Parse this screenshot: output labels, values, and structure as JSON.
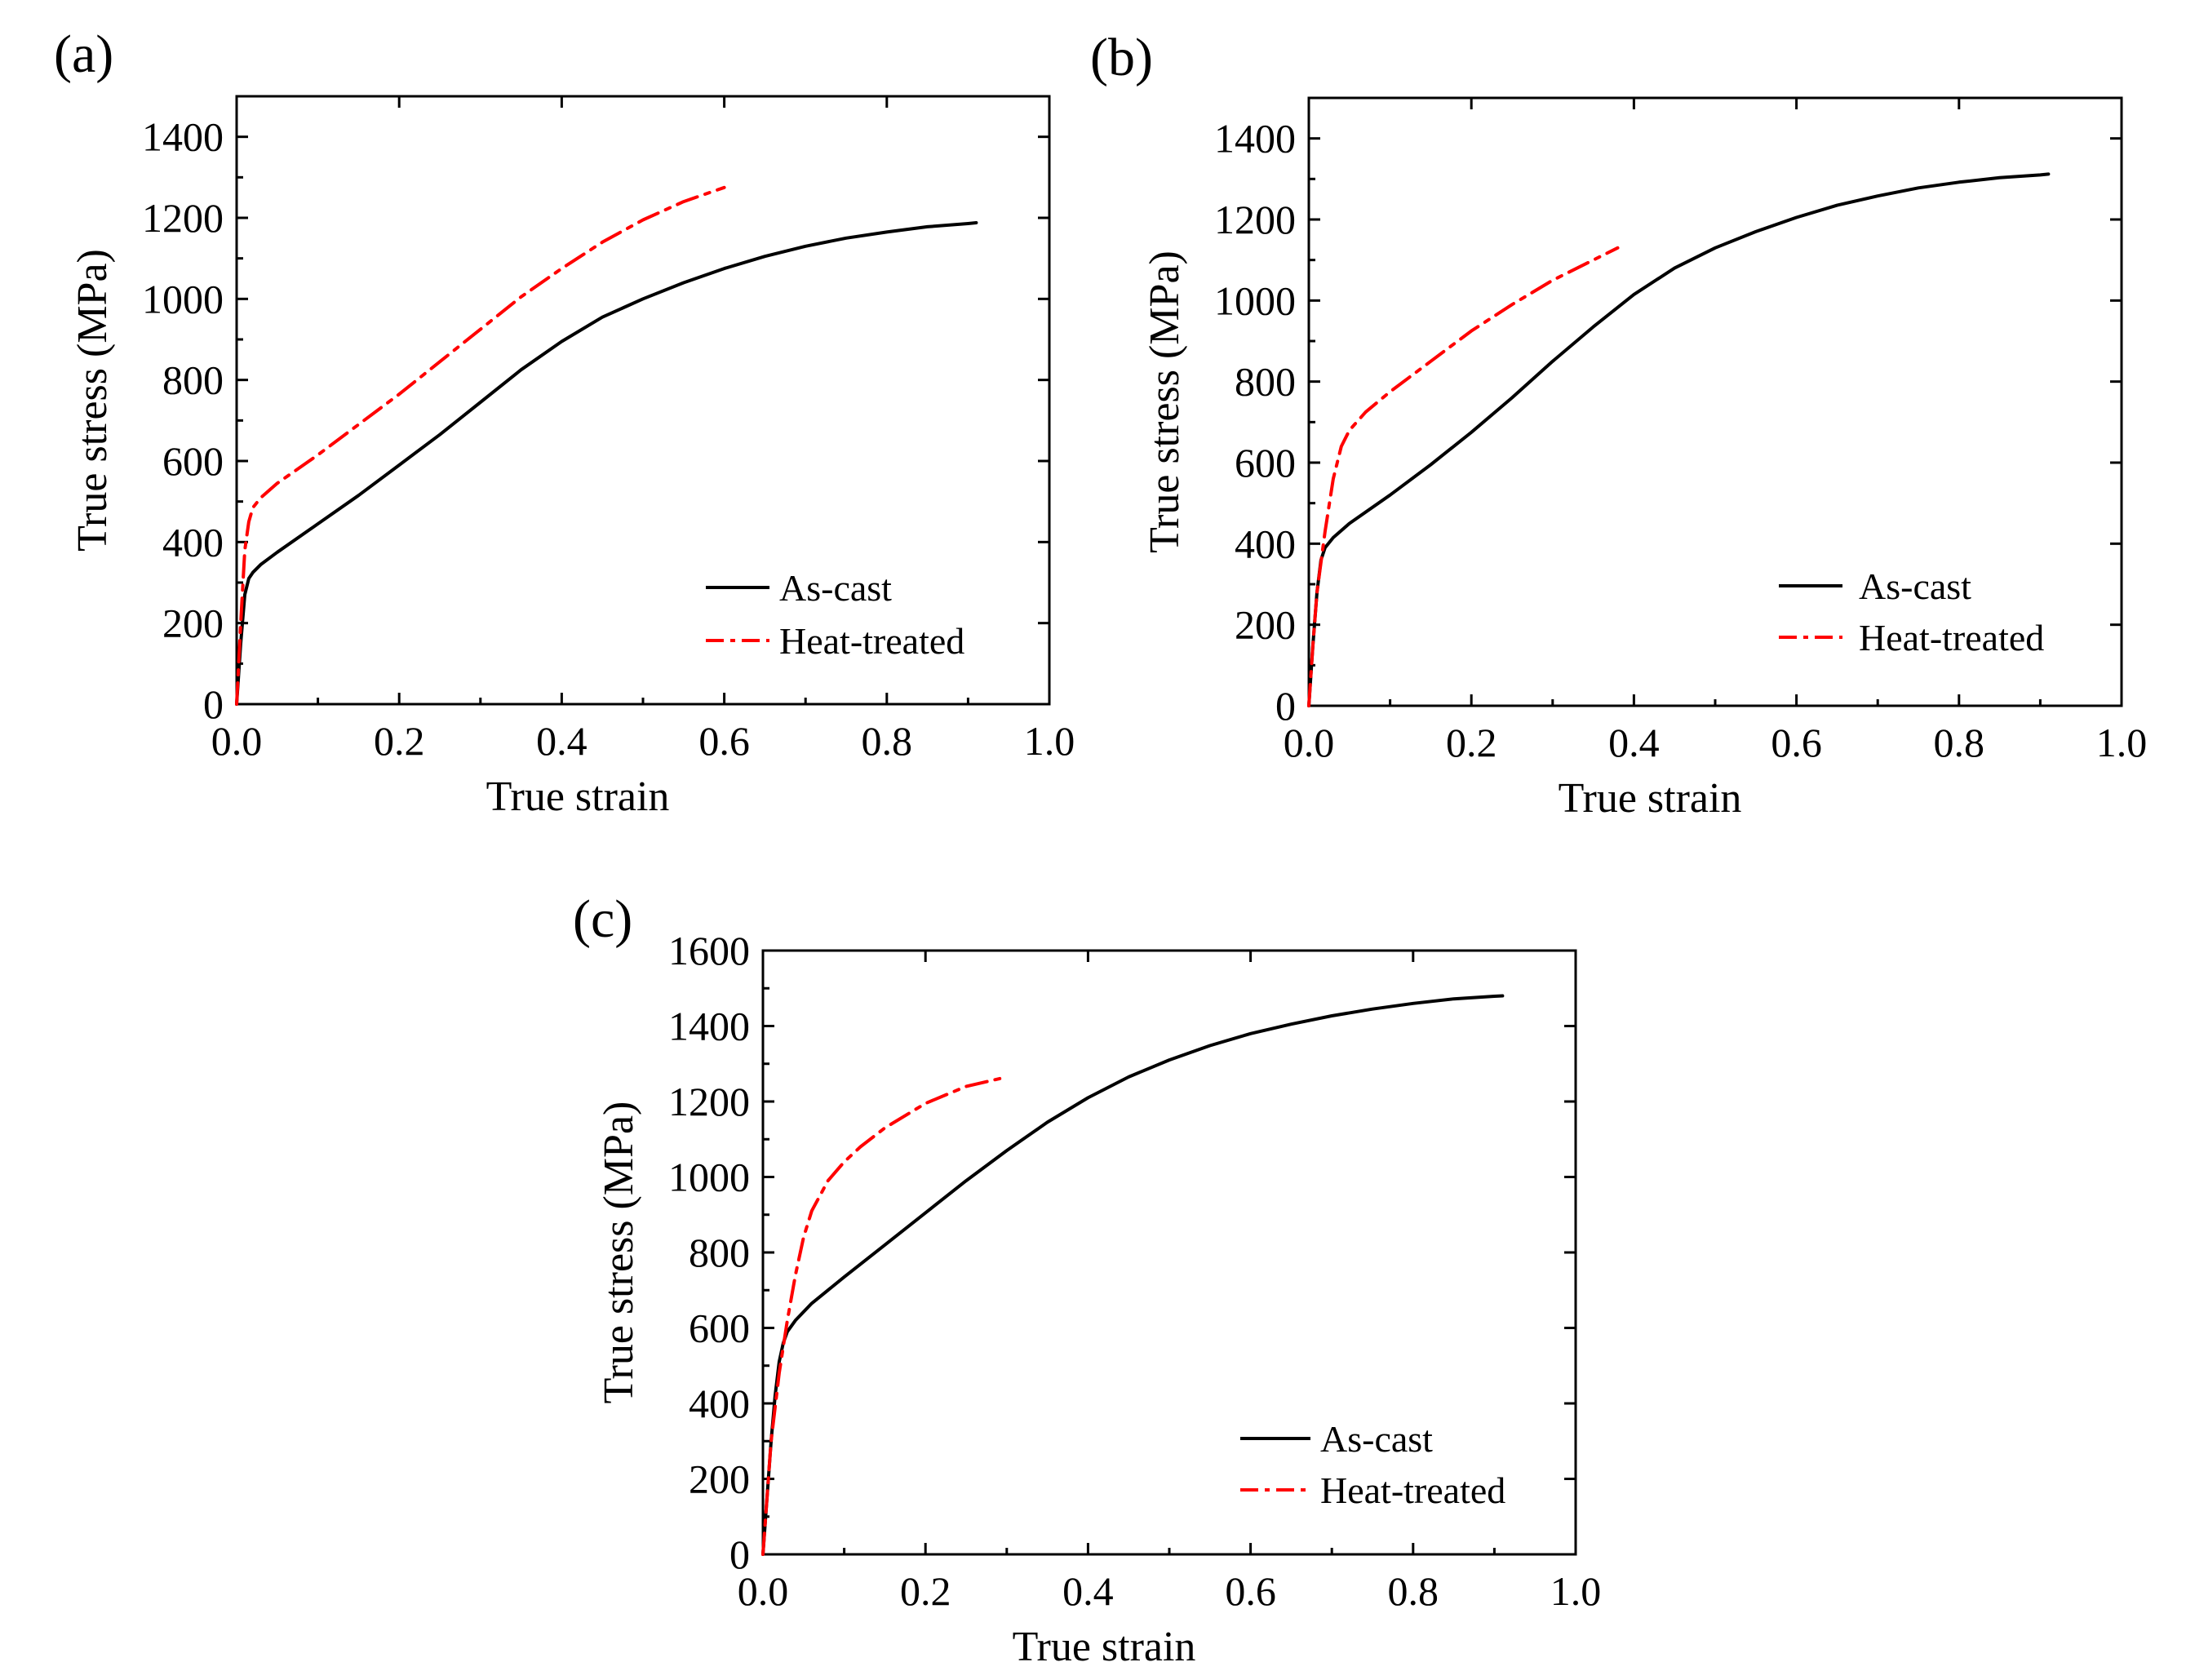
{
  "figure": {
    "description": "True stress vs true strain curves, three panels",
    "colors": {
      "as_cast": "#000000",
      "heat_treated": "#ff0000",
      "axis": "#000000"
    }
  },
  "chart_data": [
    {
      "panel": "(a)",
      "type": "line",
      "xlabel": "True strain",
      "ylabel": "True stress (MPa)",
      "xlim": [
        0.0,
        1.0
      ],
      "ylim": [
        0,
        1500
      ],
      "xticks": [
        0.0,
        0.2,
        0.4,
        0.6,
        0.8,
        1.0
      ],
      "xtick_labels": [
        "0.0",
        "0.2",
        "0.4",
        "0.6",
        "0.8",
        "1.0"
      ],
      "yticks": [
        0,
        200,
        400,
        600,
        800,
        1000,
        1200,
        1400
      ],
      "ytick_labels": [
        "0",
        "200",
        "400",
        "600",
        "800",
        "1000",
        "1200",
        "1400"
      ],
      "legend_position": "bottom-right",
      "series": [
        {
          "name": "As-cast",
          "style": "solid",
          "color": "#000000",
          "x": [
            0.0,
            0.005,
            0.01,
            0.015,
            0.02,
            0.03,
            0.05,
            0.1,
            0.15,
            0.2,
            0.25,
            0.3,
            0.35,
            0.4,
            0.45,
            0.5,
            0.55,
            0.6,
            0.65,
            0.7,
            0.75,
            0.8,
            0.85,
            0.9,
            0.91
          ],
          "y": [
            0,
            150,
            270,
            310,
            325,
            345,
            375,
            445,
            515,
            590,
            665,
            745,
            825,
            895,
            955,
            1000,
            1040,
            1075,
            1105,
            1130,
            1150,
            1165,
            1178,
            1186,
            1188
          ]
        },
        {
          "name": "Heat-treated",
          "style": "dashdot",
          "color": "#ff0000",
          "x": [
            0.0,
            0.005,
            0.01,
            0.015,
            0.02,
            0.03,
            0.05,
            0.1,
            0.15,
            0.2,
            0.25,
            0.3,
            0.35,
            0.4,
            0.45,
            0.5,
            0.55,
            0.6
          ],
          "y": [
            0,
            200,
            380,
            450,
            485,
            510,
            545,
            615,
            690,
            765,
            845,
            925,
            1005,
            1075,
            1140,
            1195,
            1240,
            1275
          ]
        }
      ]
    },
    {
      "panel": "(b)",
      "type": "line",
      "xlabel": "True strain",
      "ylabel": "True stress (MPa)",
      "xlim": [
        0.0,
        1.0
      ],
      "ylim": [
        0,
        1500
      ],
      "xticks": [
        0.0,
        0.2,
        0.4,
        0.6,
        0.8,
        1.0
      ],
      "xtick_labels": [
        "0.0",
        "0.2",
        "0.4",
        "0.6",
        "0.8",
        "1.0"
      ],
      "yticks": [
        0,
        200,
        400,
        600,
        800,
        1000,
        1200,
        1400
      ],
      "ytick_labels": [
        "0",
        "200",
        "400",
        "600",
        "800",
        "1000",
        "1200",
        "1400"
      ],
      "legend_position": "bottom-right",
      "series": [
        {
          "name": "As-cast",
          "style": "solid",
          "color": "#000000",
          "x": [
            0.0,
            0.005,
            0.01,
            0.015,
            0.02,
            0.03,
            0.05,
            0.1,
            0.15,
            0.2,
            0.25,
            0.3,
            0.35,
            0.4,
            0.45,
            0.5,
            0.55,
            0.6,
            0.65,
            0.7,
            0.75,
            0.8,
            0.85,
            0.9,
            0.91
          ],
          "y": [
            0,
            150,
            280,
            360,
            390,
            415,
            450,
            520,
            595,
            675,
            760,
            850,
            935,
            1015,
            1080,
            1130,
            1170,
            1205,
            1235,
            1258,
            1278,
            1292,
            1303,
            1310,
            1312
          ]
        },
        {
          "name": "Heat-treated",
          "style": "dashdot",
          "color": "#ff0000",
          "x": [
            0.0,
            0.005,
            0.01,
            0.02,
            0.03,
            0.04,
            0.05,
            0.07,
            0.1,
            0.15,
            0.2,
            0.25,
            0.3,
            0.35,
            0.38
          ],
          "y": [
            0,
            150,
            280,
            430,
            560,
            640,
            680,
            725,
            775,
            850,
            925,
            990,
            1050,
            1100,
            1130
          ]
        }
      ]
    },
    {
      "panel": "(c)",
      "type": "line",
      "xlabel": "True strain",
      "ylabel": "True stress (MPa)",
      "xlim": [
        0.0,
        1.0
      ],
      "ylim": [
        0,
        1600
      ],
      "xticks": [
        0.0,
        0.2,
        0.4,
        0.6,
        0.8,
        1.0
      ],
      "xtick_labels": [
        "0.0",
        "0.2",
        "0.4",
        "0.6",
        "0.8",
        "1.0"
      ],
      "yticks": [
        0,
        200,
        400,
        600,
        800,
        1000,
        1200,
        1400,
        1600
      ],
      "ytick_labels": [
        "0",
        "200",
        "400",
        "600",
        "800",
        "1000",
        "1200",
        "1400",
        "1600"
      ],
      "legend_position": "bottom-right",
      "series": [
        {
          "name": "As-cast",
          "style": "solid",
          "color": "#000000",
          "x": [
            0.0,
            0.005,
            0.01,
            0.015,
            0.02,
            0.025,
            0.03,
            0.04,
            0.06,
            0.1,
            0.15,
            0.2,
            0.25,
            0.3,
            0.35,
            0.4,
            0.45,
            0.5,
            0.55,
            0.6,
            0.65,
            0.7,
            0.75,
            0.8,
            0.85,
            0.9,
            0.91
          ],
          "y": [
            0,
            150,
            300,
            420,
            510,
            560,
            590,
            620,
            665,
            735,
            820,
            905,
            990,
            1070,
            1145,
            1210,
            1265,
            1310,
            1348,
            1380,
            1405,
            1427,
            1445,
            1460,
            1472,
            1479,
            1480
          ]
        },
        {
          "name": "Heat-treated",
          "style": "dashdot",
          "color": "#ff0000",
          "x": [
            0.0,
            0.005,
            0.01,
            0.02,
            0.03,
            0.04,
            0.05,
            0.06,
            0.08,
            0.1,
            0.12,
            0.15,
            0.2,
            0.25,
            0.3
          ],
          "y": [
            0,
            150,
            300,
            480,
            620,
            740,
            840,
            910,
            990,
            1040,
            1080,
            1130,
            1195,
            1240,
            1265
          ]
        }
      ]
    }
  ]
}
